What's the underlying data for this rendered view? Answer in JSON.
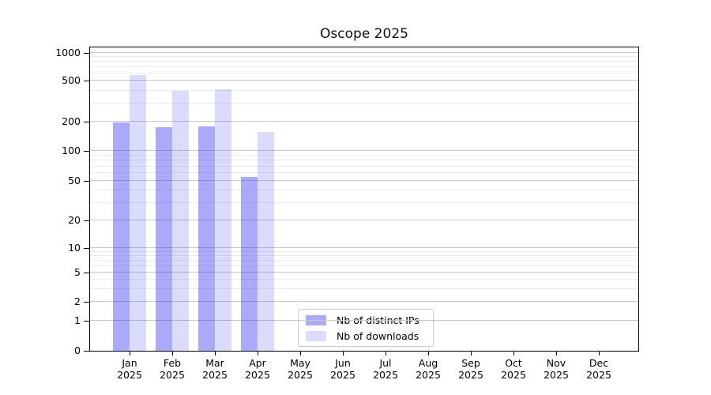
{
  "chart": {
    "title": "Oscope 2025"
  },
  "chart_data": {
    "type": "bar",
    "title": "Oscope 2025",
    "x_year": "2025",
    "categories": [
      "Jan",
      "Feb",
      "Mar",
      "Apr",
      "May",
      "Jun",
      "Jul",
      "Aug",
      "Sep",
      "Oct",
      "Nov",
      "Dec"
    ],
    "series": [
      {
        "name": "Nb of distinct IPs",
        "color": "rgba(43,43,238,0.40)",
        "values": [
          195,
          175,
          180,
          55,
          0,
          0,
          0,
          0,
          0,
          0,
          0,
          0
        ]
      },
      {
        "name": "Nb of downloads",
        "color": "rgba(43,43,238,0.17)",
        "values": [
          580,
          400,
          415,
          158,
          0,
          0,
          0,
          0,
          0,
          0,
          0,
          0
        ]
      }
    ],
    "yscale": "symlog",
    "ylim": [
      0,
      1170
    ],
    "yticks": [
      0,
      1,
      2,
      5,
      10,
      20,
      50,
      100,
      200,
      500,
      1000
    ],
    "y_minor_ticks": [
      3,
      4,
      6,
      7,
      8,
      9,
      30,
      40,
      60,
      70,
      80,
      90,
      300,
      400,
      600,
      700,
      800,
      900
    ],
    "grid": {
      "major": true,
      "minor": true,
      "orientation": "horizontal"
    },
    "legend": {
      "position": "inside-lower-center",
      "labels": [
        "Nb of distinct IPs",
        "Nb of downloads"
      ]
    }
  },
  "colors": {
    "grid_major": "#c9c9c9",
    "grid_minor": "#ebebeb",
    "axis": "#000000",
    "background": "#ffffff"
  }
}
